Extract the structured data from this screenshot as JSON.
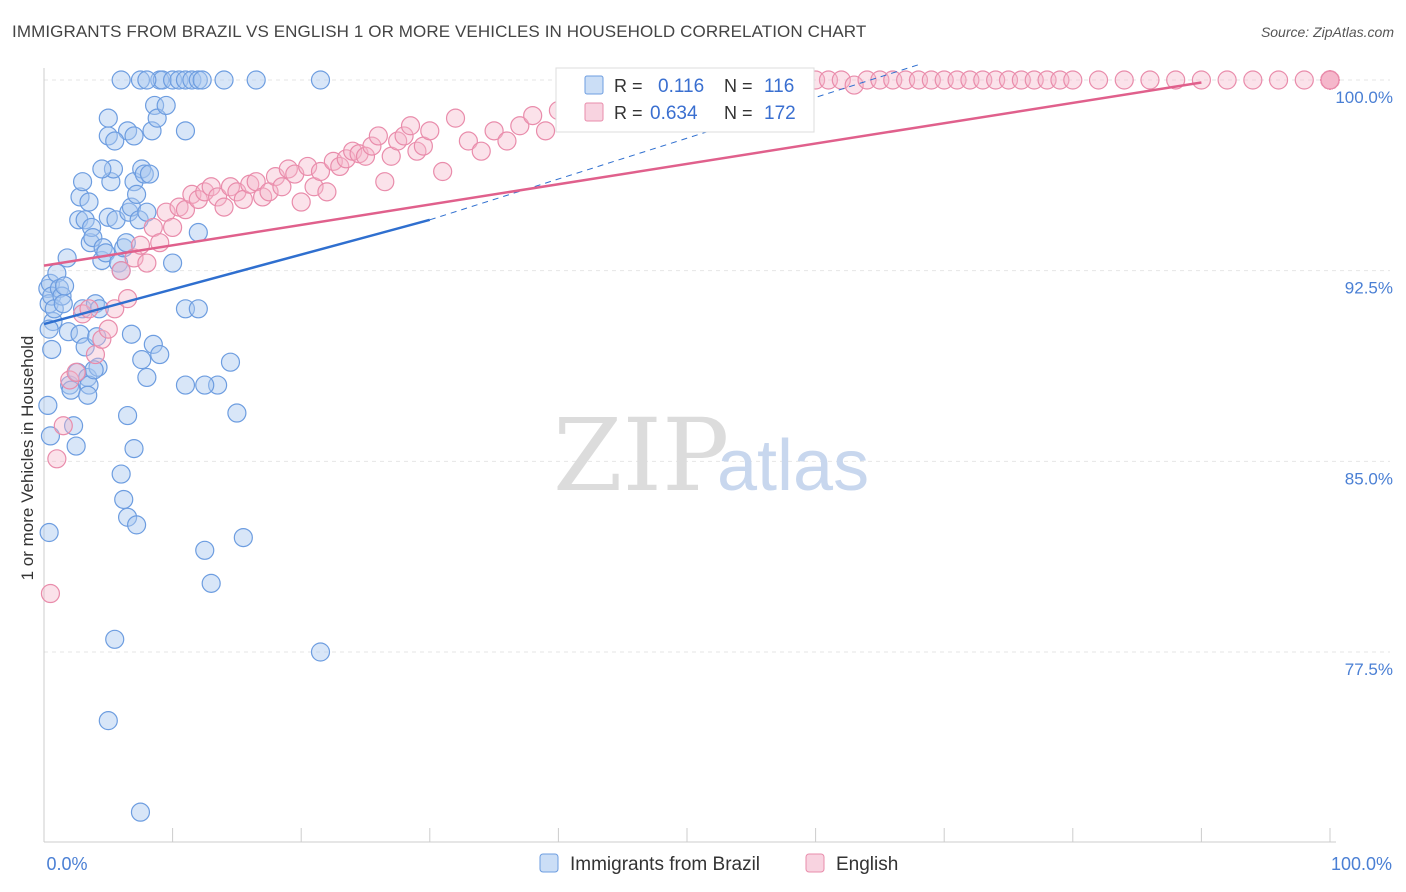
{
  "header": {
    "title": "IMMIGRANTS FROM BRAZIL VS ENGLISH 1 OR MORE VEHICLES IN HOUSEHOLD CORRELATION CHART",
    "source": "Source: ZipAtlas.com"
  },
  "watermark": {
    "zip": "ZIP",
    "atlas": "atlas"
  },
  "legend": {
    "r_label": "R =",
    "n_label": "N =",
    "rows": [
      {
        "r": "0.116",
        "n": "116"
      },
      {
        "r": "0.634",
        "n": "172"
      }
    ]
  },
  "colors": {
    "blue_fill": "#a9c8f0",
    "blue_stroke": "#6d9de0",
    "blue_line": "#2f6fcf",
    "pink_fill": "#f4b6cb",
    "pink_stroke": "#e98cab",
    "pink_line": "#e0608c"
  },
  "chart_data": {
    "type": "scatter",
    "title": "IMMIGRANTS FROM BRAZIL VS ENGLISH 1 OR MORE VEHICLES IN HOUSEHOLD CORRELATION CHART",
    "xlabel": "",
    "ylabel": "1 or more Vehicles in Household",
    "xlim": [
      0,
      100
    ],
    "ylim": [
      71.0,
      101.0
    ],
    "x_tick_labels": [
      "0.0%",
      "100.0%"
    ],
    "y_ticks": [
      77.5,
      85.0,
      92.5,
      100.0
    ],
    "y_tick_labels": [
      "77.5%",
      "85.0%",
      "92.5%",
      "100.0%"
    ],
    "grid": true,
    "legend_position": "bottom-center",
    "series": [
      {
        "name": "Immigrants from Brazil",
        "r": 0.116,
        "n": 116,
        "trend": {
          "x": [
            0,
            30
          ],
          "y": [
            90.4,
            94.5
          ]
        },
        "trend_dashed": {
          "x": [
            30,
            68
          ],
          "y": [
            94.5,
            100.6
          ]
        },
        "points": [
          [
            0.3,
            91.8
          ],
          [
            0.4,
            91.2
          ],
          [
            0.5,
            92.0
          ],
          [
            0.6,
            91.5
          ],
          [
            0.7,
            90.5
          ],
          [
            0.8,
            91.0
          ],
          [
            0.4,
            90.2
          ],
          [
            0.6,
            89.4
          ],
          [
            0.3,
            87.2
          ],
          [
            0.5,
            86.0
          ],
          [
            0.4,
            82.2
          ],
          [
            1.0,
            92.4
          ],
          [
            1.2,
            91.8
          ],
          [
            1.4,
            91.5
          ],
          [
            1.5,
            91.2
          ],
          [
            1.6,
            91.9
          ],
          [
            1.8,
            93.0
          ],
          [
            1.9,
            90.1
          ],
          [
            2.0,
            88.0
          ],
          [
            2.1,
            87.8
          ],
          [
            2.3,
            86.4
          ],
          [
            2.5,
            85.6
          ],
          [
            2.6,
            88.5
          ],
          [
            2.8,
            90.0
          ],
          [
            3.0,
            91.0
          ],
          [
            3.2,
            89.5
          ],
          [
            3.4,
            88.3
          ],
          [
            2.7,
            94.5
          ],
          [
            2.8,
            95.4
          ],
          [
            3.0,
            96.0
          ],
          [
            3.2,
            94.5
          ],
          [
            3.5,
            95.2
          ],
          [
            3.6,
            93.6
          ],
          [
            3.7,
            94.2
          ],
          [
            3.8,
            93.8
          ],
          [
            4.0,
            91.2
          ],
          [
            4.1,
            89.9
          ],
          [
            4.2,
            88.7
          ],
          [
            3.5,
            88.0
          ],
          [
            3.4,
            87.6
          ],
          [
            3.9,
            88.6
          ],
          [
            4.3,
            91.0
          ],
          [
            4.5,
            92.9
          ],
          [
            4.6,
            93.4
          ],
          [
            4.8,
            93.2
          ],
          [
            5.0,
            94.6
          ],
          [
            5.2,
            96.0
          ],
          [
            5.4,
            96.5
          ],
          [
            5.6,
            94.5
          ],
          [
            5.8,
            92.8
          ],
          [
            6.0,
            92.5
          ],
          [
            6.2,
            93.4
          ],
          [
            6.4,
            93.6
          ],
          [
            6.6,
            94.8
          ],
          [
            6.8,
            95.0
          ],
          [
            7.0,
            96.0
          ],
          [
            7.2,
            95.5
          ],
          [
            7.4,
            94.5
          ],
          [
            7.6,
            96.5
          ],
          [
            7.8,
            96.3
          ],
          [
            8.0,
            94.8
          ],
          [
            8.2,
            96.3
          ],
          [
            8.4,
            98.0
          ],
          [
            8.6,
            99.0
          ],
          [
            8.8,
            98.5
          ],
          [
            9.0,
            100.0
          ],
          [
            9.2,
            100.0
          ],
          [
            9.5,
            99.0
          ],
          [
            10.0,
            100.0
          ],
          [
            10.5,
            100.0
          ],
          [
            11.0,
            100.0
          ],
          [
            11.5,
            100.0
          ],
          [
            12.0,
            100.0
          ],
          [
            6.0,
            100.0
          ],
          [
            6.5,
            98.0
          ],
          [
            7.0,
            97.8
          ],
          [
            7.5,
            100.0
          ],
          [
            8.0,
            100.0
          ],
          [
            12.3,
            100.0
          ],
          [
            14.0,
            100.0
          ],
          [
            16.5,
            100.0
          ],
          [
            21.5,
            100.0
          ],
          [
            5.0,
            97.8
          ],
          [
            5.5,
            97.6
          ],
          [
            4.5,
            96.5
          ],
          [
            5.0,
            98.5
          ],
          [
            11.0,
            98.0
          ],
          [
            12.0,
            94.0
          ],
          [
            10.0,
            92.8
          ],
          [
            11.0,
            91.0
          ],
          [
            12.0,
            91.0
          ],
          [
            8.5,
            89.6
          ],
          [
            9.0,
            89.2
          ],
          [
            6.5,
            86.8
          ],
          [
            7.0,
            85.5
          ],
          [
            6.0,
            84.5
          ],
          [
            6.2,
            83.5
          ],
          [
            6.5,
            82.8
          ],
          [
            7.2,
            82.5
          ],
          [
            13.5,
            88.0
          ],
          [
            11.0,
            88.0
          ],
          [
            12.5,
            88.0
          ],
          [
            14.5,
            88.9
          ],
          [
            15.0,
            86.9
          ],
          [
            12.5,
            81.5
          ],
          [
            13.0,
            80.2
          ],
          [
            15.5,
            82.0
          ],
          [
            5.5,
            78.0
          ],
          [
            21.5,
            77.5
          ],
          [
            5.0,
            74.8
          ],
          [
            7.5,
            71.2
          ],
          [
            6.8,
            90.0
          ],
          [
            7.6,
            89.0
          ],
          [
            8.0,
            88.3
          ]
        ]
      },
      {
        "name": "English",
        "r": 0.634,
        "n": 172,
        "trend": {
          "x": [
            0,
            90
          ],
          "y": [
            92.7,
            99.9
          ]
        },
        "points": [
          [
            0.5,
            79.8
          ],
          [
            1.0,
            85.1
          ],
          [
            1.5,
            86.4
          ],
          [
            2.0,
            88.2
          ],
          [
            2.5,
            88.5
          ],
          [
            3.0,
            90.8
          ],
          [
            3.5,
            91.0
          ],
          [
            4.0,
            89.2
          ],
          [
            4.5,
            89.8
          ],
          [
            5.0,
            90.2
          ],
          [
            5.5,
            91.0
          ],
          [
            6.0,
            92.5
          ],
          [
            6.5,
            91.4
          ],
          [
            7.0,
            93.0
          ],
          [
            7.5,
            93.5
          ],
          [
            8.0,
            92.8
          ],
          [
            8.5,
            94.2
          ],
          [
            9.0,
            93.6
          ],
          [
            9.5,
            94.8
          ],
          [
            10.0,
            94.2
          ],
          [
            10.5,
            95.0
          ],
          [
            11.0,
            94.9
          ],
          [
            11.5,
            95.5
          ],
          [
            12.0,
            95.3
          ],
          [
            12.5,
            95.6
          ],
          [
            13.0,
            95.8
          ],
          [
            13.5,
            95.4
          ],
          [
            14.0,
            95.0
          ],
          [
            14.5,
            95.8
          ],
          [
            15.0,
            95.6
          ],
          [
            15.5,
            95.3
          ],
          [
            16.0,
            95.9
          ],
          [
            16.5,
            96.0
          ],
          [
            17.0,
            95.4
          ],
          [
            17.5,
            95.6
          ],
          [
            18.0,
            96.2
          ],
          [
            18.5,
            95.8
          ],
          [
            19.0,
            96.5
          ],
          [
            19.5,
            96.3
          ],
          [
            20.0,
            95.2
          ],
          [
            20.5,
            96.6
          ],
          [
            21.0,
            95.8
          ],
          [
            21.5,
            96.4
          ],
          [
            22.0,
            95.6
          ],
          [
            22.5,
            96.8
          ],
          [
            23.0,
            96.6
          ],
          [
            23.5,
            96.9
          ],
          [
            24.0,
            97.2
          ],
          [
            24.5,
            97.1
          ],
          [
            25.0,
            97.0
          ],
          [
            25.5,
            97.4
          ],
          [
            26.0,
            97.8
          ],
          [
            26.5,
            96.0
          ],
          [
            27.0,
            97.0
          ],
          [
            27.5,
            97.6
          ],
          [
            28.0,
            97.8
          ],
          [
            28.5,
            98.2
          ],
          [
            29.0,
            97.2
          ],
          [
            29.5,
            97.4
          ],
          [
            30.0,
            98.0
          ],
          [
            31.0,
            96.4
          ],
          [
            32.0,
            98.5
          ],
          [
            33.0,
            97.6
          ],
          [
            34.0,
            97.2
          ],
          [
            35.0,
            98.0
          ],
          [
            36.0,
            97.6
          ],
          [
            37.0,
            98.2
          ],
          [
            38.0,
            98.6
          ],
          [
            39.0,
            98.0
          ],
          [
            40.0,
            98.8
          ],
          [
            41.0,
            99.0
          ],
          [
            42.0,
            98.4
          ],
          [
            43.0,
            99.2
          ],
          [
            44.0,
            99.0
          ],
          [
            45.0,
            99.5
          ],
          [
            46.0,
            99.0
          ],
          [
            47.0,
            99.5
          ],
          [
            48.0,
            99.8
          ],
          [
            49.0,
            100.0
          ],
          [
            50.0,
            99.6
          ],
          [
            51.0,
            100.0
          ],
          [
            52.0,
            100.0
          ],
          [
            53.0,
            99.8
          ],
          [
            54.0,
            100.0
          ],
          [
            55.0,
            100.0
          ],
          [
            56.0,
            100.0
          ],
          [
            57.0,
            99.6
          ],
          [
            58.0,
            100.0
          ],
          [
            59.0,
            100.0
          ],
          [
            60.0,
            100.0
          ],
          [
            61.0,
            100.0
          ],
          [
            62.0,
            100.0
          ],
          [
            63.0,
            99.8
          ],
          [
            64.0,
            100.0
          ],
          [
            65.0,
            100.0
          ],
          [
            66.0,
            100.0
          ],
          [
            67.0,
            100.0
          ],
          [
            68.0,
            100.0
          ],
          [
            69.0,
            100.0
          ],
          [
            70.0,
            100.0
          ],
          [
            71.0,
            100.0
          ],
          [
            72.0,
            100.0
          ],
          [
            73.0,
            100.0
          ],
          [
            74.0,
            100.0
          ],
          [
            75.0,
            100.0
          ],
          [
            76.0,
            100.0
          ],
          [
            77.0,
            100.0
          ],
          [
            78.0,
            100.0
          ],
          [
            79.0,
            100.0
          ],
          [
            80.0,
            100.0
          ],
          [
            82.0,
            100.0
          ],
          [
            84.0,
            100.0
          ],
          [
            86.0,
            100.0
          ],
          [
            88.0,
            100.0
          ],
          [
            90.0,
            100.0
          ],
          [
            92.0,
            100.0
          ],
          [
            94.0,
            100.0
          ],
          [
            96.0,
            100.0
          ],
          [
            98.0,
            100.0
          ],
          [
            100.0,
            100.0
          ],
          [
            100.0,
            100.0
          ],
          [
            100.0,
            100.0
          ],
          [
            100.0,
            100.0
          ],
          [
            100.0,
            100.0
          ],
          [
            100.0,
            100.0
          ],
          [
            100.0,
            100.0
          ],
          [
            100.0,
            100.0
          ],
          [
            100.0,
            100.0
          ],
          [
            100.0,
            100.0
          ],
          [
            100.0,
            100.0
          ],
          [
            100.0,
            100.0
          ],
          [
            100.0,
            100.0
          ],
          [
            100.0,
            100.0
          ],
          [
            100.0,
            100.0
          ],
          [
            100.0,
            100.0
          ],
          [
            100.0,
            100.0
          ],
          [
            100.0,
            100.0
          ],
          [
            100.0,
            100.0
          ],
          [
            100.0,
            100.0
          ],
          [
            100.0,
            100.0
          ],
          [
            100.0,
            100.0
          ],
          [
            100.0,
            100.0
          ],
          [
            100.0,
            100.0
          ],
          [
            100.0,
            100.0
          ],
          [
            100.0,
            100.0
          ],
          [
            100.0,
            100.0
          ],
          [
            100.0,
            100.0
          ],
          [
            100.0,
            100.0
          ],
          [
            100.0,
            100.0
          ],
          [
            100.0,
            100.0
          ],
          [
            100.0,
            100.0
          ],
          [
            100.0,
            100.0
          ],
          [
            100.0,
            100.0
          ],
          [
            100.0,
            100.0
          ],
          [
            100.0,
            100.0
          ],
          [
            100.0,
            100.0
          ],
          [
            100.0,
            100.0
          ],
          [
            100.0,
            100.0
          ],
          [
            100.0,
            100.0
          ],
          [
            100.0,
            100.0
          ],
          [
            100.0,
            100.0
          ],
          [
            100.0,
            100.0
          ],
          [
            100.0,
            100.0
          ]
        ]
      }
    ]
  }
}
